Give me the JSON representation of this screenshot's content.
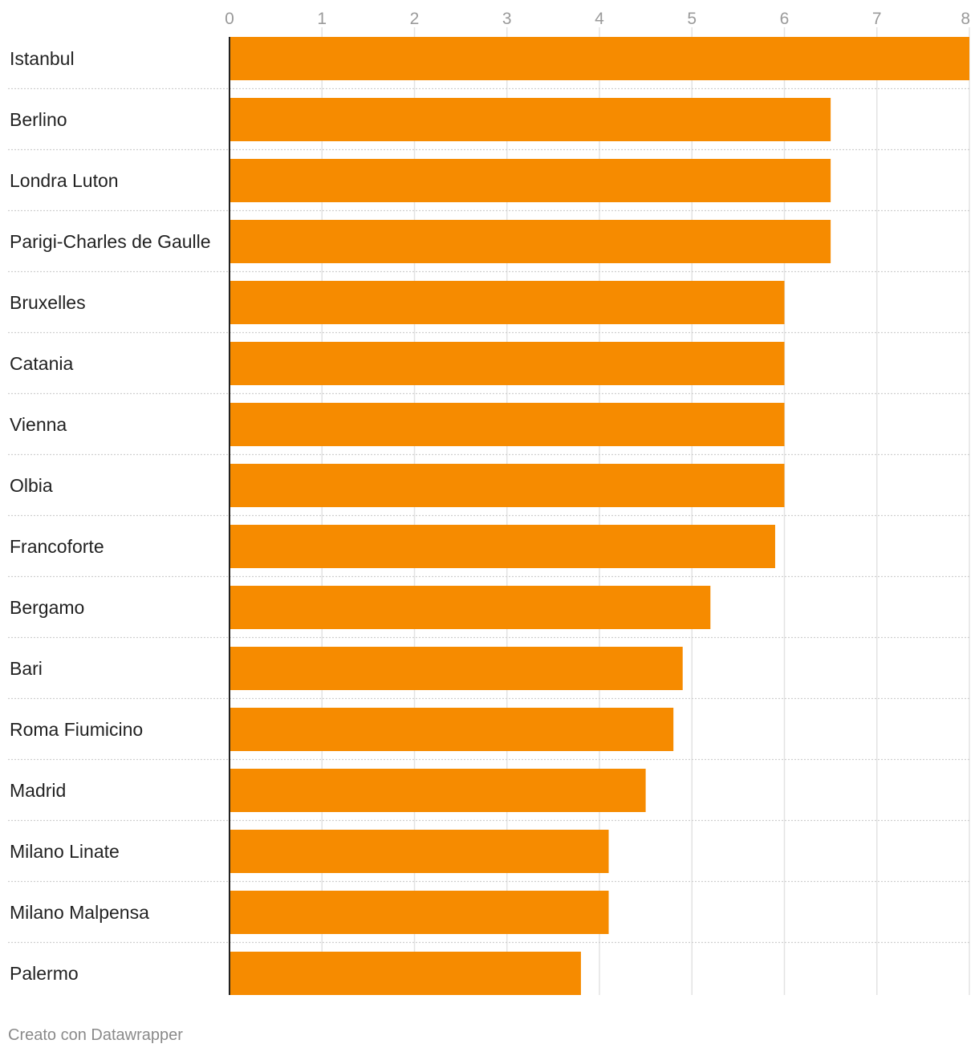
{
  "chart_data": {
    "type": "bar",
    "orientation": "horizontal",
    "title": "",
    "xlabel": "",
    "ylabel": "",
    "xlim": [
      0,
      8
    ],
    "ticks": [
      "0",
      "1",
      "2",
      "3",
      "4",
      "5",
      "6",
      "7",
      "8"
    ],
    "categories": [
      "Istanbul",
      "Berlino",
      "Londra Luton",
      "Parigi-Charles de Gaulle",
      "Bruxelles",
      "Catania",
      "Vienna",
      "Olbia",
      "Francoforte",
      "Bergamo",
      "Bari",
      "Roma Fiumicino",
      "Madrid",
      "Milano Linate",
      "Milano Malpensa",
      "Palermo"
    ],
    "values": [
      8.0,
      6.5,
      6.5,
      6.5,
      6.0,
      6.0,
      6.0,
      6.0,
      5.9,
      5.2,
      4.9,
      4.8,
      4.5,
      4.1,
      4.1,
      3.8
    ],
    "bar_color": "#f68b00",
    "grid": true,
    "legend": "none"
  },
  "footer": {
    "credit": "Creato con Datawrapper"
  }
}
